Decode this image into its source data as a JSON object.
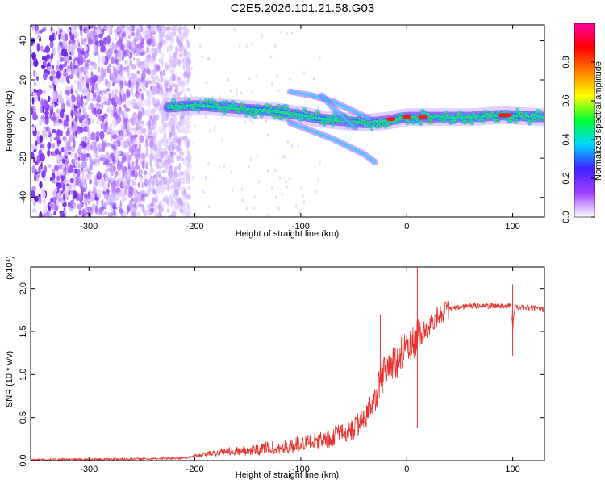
{
  "title": "C2E5.2026.101.21.58.G03",
  "chart_data": [
    {
      "type": "heatmap",
      "xlabel": "Height of straight line (km)",
      "ylabel": "Frequency (Hz)",
      "xlim": [
        -355,
        130
      ],
      "ylim": [
        -50,
        48
      ],
      "xticks": [
        -300,
        -200,
        -100,
        0,
        100
      ],
      "yticks": [
        -40,
        -20,
        0,
        20,
        40
      ],
      "colorbar": {
        "label": "Normalized spectral amplitude",
        "range": [
          0,
          1
        ],
        "ticks": [
          "0.0",
          "0.2",
          "0.4",
          "0.6",
          "0.8"
        ],
        "tick_values": [
          0,
          0.2,
          0.4,
          0.6,
          0.8
        ],
        "colors": [
          "#ffffff",
          "#a040ff",
          "#4020ff",
          "#00d8ff",
          "#00ff30",
          "#ffff00",
          "#ff8000",
          "#ff0000",
          "#ff00a0"
        ]
      },
      "ridge": {
        "x": [
          -225,
          -200,
          -175,
          -150,
          -125,
          -100,
          -80,
          -60,
          -40,
          -20,
          0,
          30,
          60,
          90,
          130
        ],
        "y": [
          6,
          7,
          6,
          5,
          4,
          2,
          0,
          -1,
          -2,
          -1,
          1,
          1,
          1,
          2,
          1
        ]
      },
      "noise_region_x": [
        -355,
        -220
      ],
      "background_color": "#ffffff"
    },
    {
      "type": "line",
      "xlabel": "Height of straight line (km)",
      "ylabel": "SNR (10 * v/v)",
      "ymultiplier": "(x10⁴)",
      "xlim": [
        -355,
        130
      ],
      "ylim": [
        0,
        2.25
      ],
      "xticks": [
        -300,
        -200,
        -100,
        0,
        100
      ],
      "yticks": [
        0.0,
        0.5,
        1.0,
        1.5,
        2.0
      ],
      "series": [
        {
          "color": "#e8302c",
          "x": [
            -355,
            -300,
            -250,
            -210,
            -200,
            -190,
            -180,
            -170,
            -160,
            -150,
            -140,
            -130,
            -120,
            -110,
            -100,
            -90,
            -80,
            -70,
            -60,
            -50,
            -40,
            -30,
            -25,
            -20,
            -15,
            -10,
            -5,
            0,
            5,
            10,
            15,
            20,
            30,
            40,
            60,
            80,
            98,
            100,
            102,
            110,
            130
          ],
          "y": [
            0.01,
            0.015,
            0.02,
            0.03,
            0.05,
            0.07,
            0.08,
            0.1,
            0.1,
            0.1,
            0.11,
            0.14,
            0.12,
            0.15,
            0.18,
            0.2,
            0.22,
            0.25,
            0.3,
            0.35,
            0.45,
            0.7,
            0.9,
            1.0,
            1.05,
            1.1,
            1.2,
            1.25,
            1.3,
            1.4,
            1.5,
            1.55,
            1.7,
            1.76,
            1.8,
            1.8,
            1.8,
            1.55,
            1.78,
            1.78,
            1.76
          ]
        }
      ]
    }
  ]
}
